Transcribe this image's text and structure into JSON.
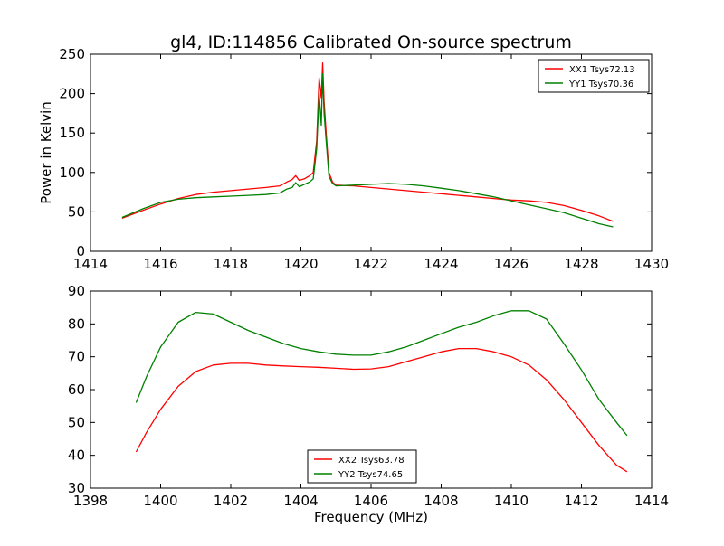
{
  "chart_data": [
    {
      "type": "line",
      "title": "gl4, ID:114856 Calibrated On-source spectrum",
      "xlabel": "",
      "ylabel": "Power in Kelvin",
      "xlim": [
        1414,
        1430
      ],
      "ylim": [
        0,
        250
      ],
      "xticks": [
        "1414",
        "1416",
        "1418",
        "1420",
        "1422",
        "1424",
        "1426",
        "1428",
        "1430"
      ],
      "yticks": [
        "0",
        "50",
        "100",
        "150",
        "200",
        "250"
      ],
      "legend_position": "top-right",
      "grid": false,
      "series": [
        {
          "name": "XX1 Tsys72.13",
          "color": "#ff0000",
          "x": [
            1414.9,
            1415.5,
            1416.0,
            1416.5,
            1417.0,
            1417.5,
            1418.0,
            1418.5,
            1419.0,
            1419.4,
            1419.6,
            1419.75,
            1419.85,
            1419.95,
            1420.1,
            1420.25,
            1420.35,
            1420.45,
            1420.52,
            1420.58,
            1420.62,
            1420.66,
            1420.72,
            1420.8,
            1420.9,
            1421.0,
            1421.5,
            1422.0,
            1422.5,
            1423.0,
            1423.5,
            1424.0,
            1424.5,
            1425.0,
            1425.5,
            1426.0,
            1426.5,
            1427.0,
            1427.5,
            1428.0,
            1428.5,
            1428.9
          ],
          "y": [
            42,
            52,
            60,
            67,
            72,
            75,
            77,
            79,
            81,
            83,
            88,
            91,
            96,
            90,
            92,
            96,
            100,
            140,
            220,
            195,
            239,
            190,
            150,
            100,
            88,
            84,
            83,
            81,
            79,
            77,
            75,
            73,
            71,
            69,
            67,
            65,
            64,
            62,
            58,
            52,
            45,
            38
          ]
        },
        {
          "name": "YY1 Tsys70.36",
          "color": "#008000",
          "x": [
            1414.9,
            1415.5,
            1416.0,
            1416.5,
            1417.0,
            1417.5,
            1418.0,
            1418.5,
            1419.0,
            1419.4,
            1419.6,
            1419.75,
            1419.85,
            1419.95,
            1420.1,
            1420.25,
            1420.35,
            1420.45,
            1420.52,
            1420.58,
            1420.62,
            1420.66,
            1420.72,
            1420.8,
            1420.9,
            1421.0,
            1421.5,
            1422.0,
            1422.5,
            1423.0,
            1423.5,
            1424.0,
            1424.5,
            1425.0,
            1425.5,
            1426.0,
            1426.5,
            1427.0,
            1427.5,
            1428.0,
            1428.5,
            1428.9
          ],
          "y": [
            43,
            54,
            62,
            66,
            68,
            69,
            70,
            71,
            72,
            74,
            79,
            81,
            87,
            82,
            85,
            88,
            92,
            130,
            200,
            160,
            225,
            175,
            140,
            95,
            86,
            83,
            84,
            85,
            86,
            85,
            83,
            80,
            77,
            73,
            69,
            64,
            59,
            54,
            49,
            42,
            35,
            31
          ]
        }
      ]
    },
    {
      "type": "line",
      "title": "",
      "xlabel": "Frequency (MHz)",
      "ylabel": "",
      "xlim": [
        1398,
        1414
      ],
      "ylim": [
        30,
        90
      ],
      "xticks": [
        "1398",
        "1400",
        "1402",
        "1404",
        "1406",
        "1408",
        "1410",
        "1412",
        "1414"
      ],
      "yticks": [
        "30",
        "40",
        "50",
        "60",
        "70",
        "80",
        "90"
      ],
      "legend_position": "lower-center",
      "grid": false,
      "series": [
        {
          "name": "XX2 Tsys63.78",
          "color": "#ff0000",
          "x": [
            1399.3,
            1399.6,
            1400.0,
            1400.5,
            1401.0,
            1401.5,
            1402.0,
            1402.5,
            1403.0,
            1403.5,
            1404.0,
            1404.5,
            1405.0,
            1405.5,
            1406.0,
            1406.5,
            1407.0,
            1407.5,
            1408.0,
            1408.5,
            1409.0,
            1409.5,
            1410.0,
            1410.5,
            1411.0,
            1411.5,
            1412.0,
            1412.5,
            1413.0,
            1413.3
          ],
          "y": [
            41,
            47,
            54,
            61,
            65.5,
            67.5,
            68,
            68,
            67.5,
            67.2,
            67,
            66.8,
            66.5,
            66.2,
            66.3,
            67,
            68.5,
            70,
            71.5,
            72.5,
            72.5,
            71.5,
            70,
            67.5,
            63,
            57,
            50,
            43,
            37,
            35
          ]
        },
        {
          "name": "YY2 Tsys74.65",
          "color": "#008000",
          "x": [
            1399.3,
            1399.6,
            1400.0,
            1400.5,
            1401.0,
            1401.5,
            1402.0,
            1402.5,
            1403.0,
            1403.5,
            1404.0,
            1404.5,
            1405.0,
            1405.5,
            1406.0,
            1406.5,
            1407.0,
            1407.5,
            1408.0,
            1408.5,
            1409.0,
            1409.5,
            1410.0,
            1410.5,
            1411.0,
            1411.5,
            1412.0,
            1412.5,
            1413.0,
            1413.3
          ],
          "y": [
            56,
            64,
            73,
            80.5,
            83.5,
            83,
            80.5,
            78,
            76,
            74,
            72.5,
            71.5,
            70.8,
            70.5,
            70.5,
            71.5,
            73,
            75,
            77,
            79,
            80.5,
            82.5,
            84,
            84,
            81.5,
            74,
            66,
            57,
            50,
            46
          ]
        }
      ]
    }
  ]
}
